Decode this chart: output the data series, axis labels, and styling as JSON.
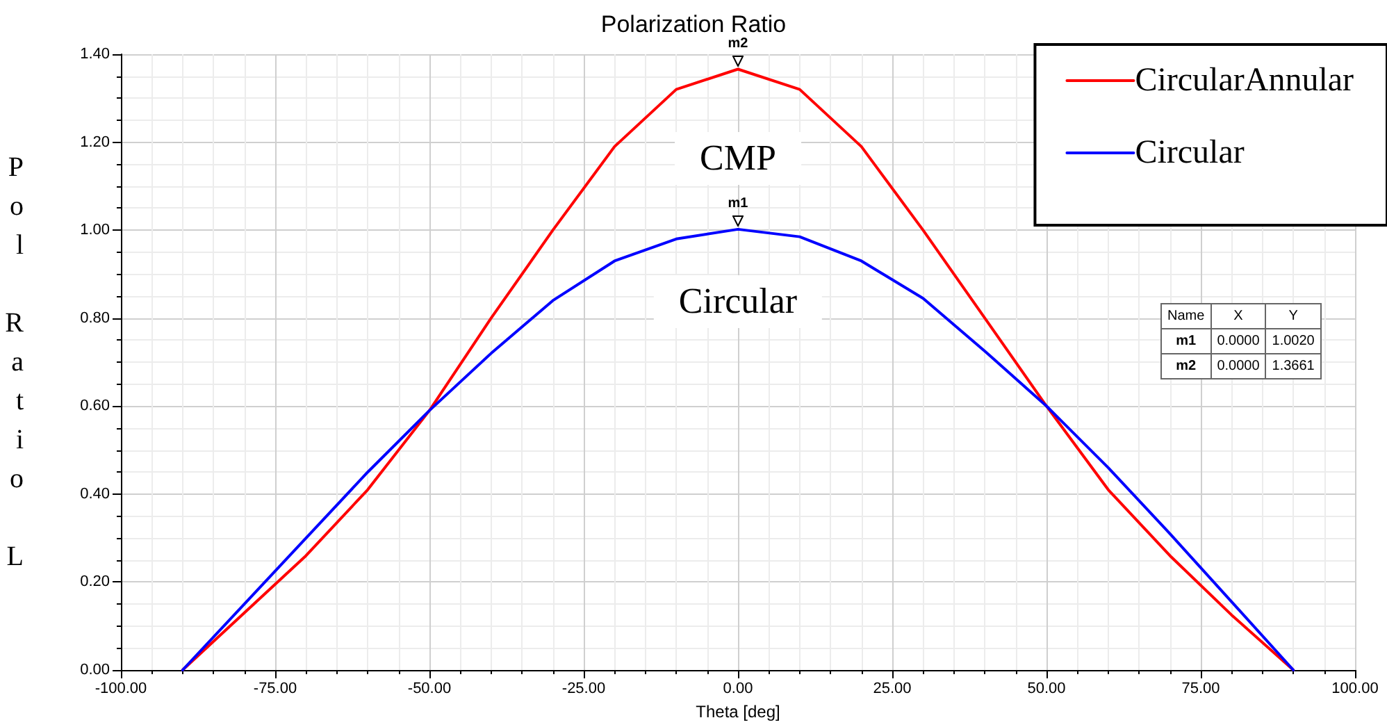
{
  "chart_data": {
    "type": "line",
    "title": "Polarization Ratio",
    "xlabel": "Theta [deg]",
    "ylabel": "Pol Ratio L",
    "x": [
      -90,
      -80,
      -70,
      -60,
      -50,
      -40,
      -30,
      -20,
      -10,
      0,
      10,
      20,
      30,
      40,
      50,
      60,
      70,
      80,
      90
    ],
    "series": [
      {
        "name": "CircularAnnular",
        "color": "#ff0000",
        "values": [
          0,
          0.13,
          0.26,
          0.41,
          0.59,
          0.8,
          1.0,
          1.19,
          1.32,
          1.366,
          1.32,
          1.19,
          1.0,
          0.8,
          0.6,
          0.41,
          0.26,
          0.125,
          0
        ]
      },
      {
        "name": "Circular",
        "color": "#0000ff",
        "values": [
          0,
          0.15,
          0.3,
          0.45,
          0.59,
          0.72,
          0.84,
          0.93,
          0.98,
          1.002,
          0.985,
          0.93,
          0.845,
          0.725,
          0.6,
          0.46,
          0.31,
          0.155,
          0
        ]
      }
    ],
    "xlim": [
      -100,
      100
    ],
    "xticks": [
      {
        "value": -100,
        "label": "-100.00"
      },
      {
        "value": -75,
        "label": "-75.00"
      },
      {
        "value": -50,
        "label": "-50.00"
      },
      {
        "value": -25,
        "label": "-25.00"
      },
      {
        "value": 0,
        "label": "0.00"
      },
      {
        "value": 25,
        "label": "25.00"
      },
      {
        "value": 50,
        "label": "50.00"
      },
      {
        "value": 75,
        "label": "75.00"
      },
      {
        "value": 100,
        "label": "100.00"
      }
    ],
    "ylim": [
      0,
      1.4
    ],
    "yticks": [
      {
        "value": 0,
        "label": "0.00"
      },
      {
        "value": 0.2,
        "label": "0.20"
      },
      {
        "value": 0.4,
        "label": "0.40"
      },
      {
        "value": 0.6,
        "label": "0.60"
      },
      {
        "value": 0.8,
        "label": "0.80"
      },
      {
        "value": 1.0,
        "label": "1.00"
      },
      {
        "value": 1.2,
        "label": "1.20"
      },
      {
        "value": 1.4,
        "label": "1.40"
      }
    ],
    "grid": true,
    "legend": "top right",
    "marker": "none",
    "line_style": "solid",
    "annotations": [
      {
        "text": "m2",
        "x": 0,
        "y": 1.3661
      },
      {
        "text": "m1",
        "x": 0,
        "y": 1.002
      },
      "CMP",
      "Circular",
      "Name",
      "X",
      "Y",
      "m1",
      "0.0000",
      "1.0020",
      "m2",
      "0.0000",
      "1.3661"
    ]
  }
}
